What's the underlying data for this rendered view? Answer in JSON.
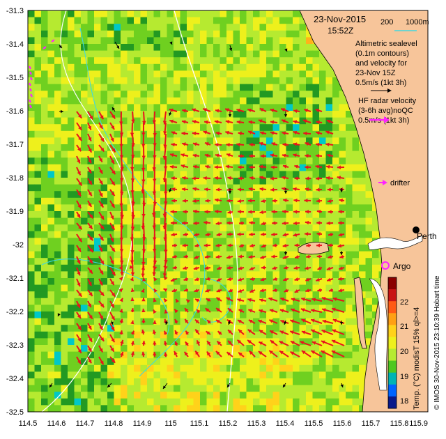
{
  "header": {
    "date": "23-Nov-2015",
    "time": "15:52Z",
    "isobath_label": "200",
    "isobath_label2": "1000m"
  },
  "legend": {
    "altimetry_lines": [
      "Altimetric sealevel",
      "(0.1m contours)",
      "and velocity for",
      "23-Nov 15Z",
      "0.5m/s (1kt 3h)"
    ],
    "hf_lines": [
      "HF radar velocity",
      "(3-6h avg)noQC",
      "0.5m/s (1kt 3h)"
    ],
    "drifter_label": "drifter",
    "argo_label": "Argo",
    "perth_label": "Perth",
    "hobart_label": "Hobart time"
  },
  "colorbar": {
    "ticks": [
      "22",
      "21",
      "20",
      "19",
      "18"
    ],
    "caption": "Temp. (°C) modisT 15% ql>=4",
    "credit": "© IMOS 30-Nov-2015 23:10:39 Hobart time"
  },
  "axes": {
    "x_ticks": [
      "114.5",
      "114.6",
      "114.7",
      "114.8",
      "114.9",
      "115",
      "115.1",
      "115.2",
      "115.3",
      "115.4",
      "115.5",
      "115.6",
      "115.7",
      "115.8",
      "115.9"
    ],
    "y_ticks": [
      "-31.3",
      "-31.4",
      "-31.5",
      "-31.6",
      "-31.7",
      "-31.8",
      "-31.9",
      "-32",
      "-32.1",
      "-32.2",
      "-32.3",
      "-32.4",
      "-32.5"
    ]
  },
  "colors": {
    "land": "#f7c59a",
    "hf_arrow": "#e8141b",
    "drifter": "#ff22ff",
    "isobath": "#40d8e0",
    "sst_scale": [
      "#0a1a8a",
      "#1e3cff",
      "#00a0ff",
      "#00e0e0",
      "#2ca02c",
      "#7fe000",
      "#f5f000",
      "#ffb000",
      "#ff6000",
      "#c01010",
      "#7a0000"
    ]
  },
  "chart_data": {
    "type": "heatmap",
    "x_range": [
      114.5,
      115.9
    ],
    "y_range": [
      -32.5,
      -31.3
    ],
    "colorbar_range": [
      17.5,
      23
    ]
  }
}
